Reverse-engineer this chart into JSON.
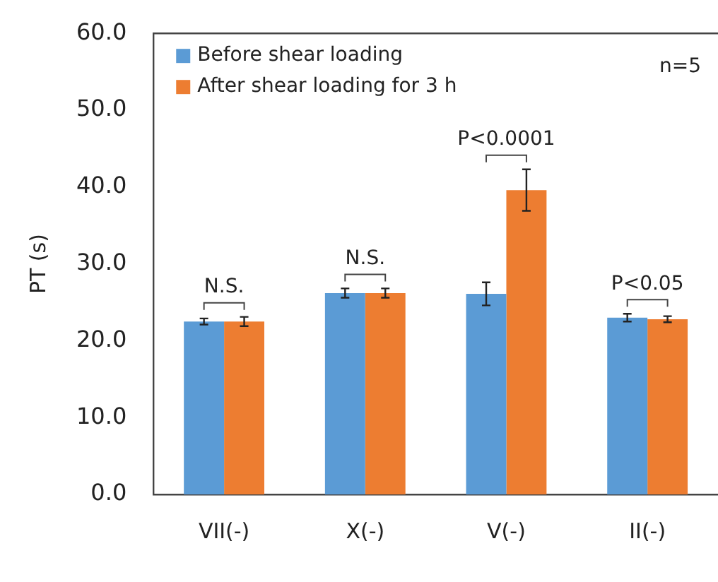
{
  "chart_data": {
    "type": "bar",
    "ylabel": "PT (s)",
    "categories": [
      "VII(-)",
      "X(-)",
      "V(-)",
      "II(-)"
    ],
    "series": [
      {
        "name": "Before shear loading",
        "color": "#5b9bd5",
        "values": [
          22.5,
          26.2,
          26.1,
          23.0
        ],
        "errors": [
          0.4,
          0.6,
          1.5,
          0.5
        ]
      },
      {
        "name": "After shear loading for 3 h",
        "color": "#ed7d31",
        "values": [
          22.5,
          26.2,
          39.6,
          22.8
        ],
        "errors": [
          0.6,
          0.6,
          2.7,
          0.4
        ]
      }
    ],
    "ylim": [
      0,
      60
    ],
    "yticks": [
      {
        "value": 0,
        "label": "0.0"
      },
      {
        "value": 10,
        "label": "10.0"
      },
      {
        "value": 20,
        "label": "20.0"
      },
      {
        "value": 30,
        "label": "30.0"
      },
      {
        "value": 40,
        "label": "40.0"
      },
      {
        "value": 50,
        "label": "50.0"
      },
      {
        "value": 60,
        "label": "60.0"
      }
    ],
    "grid": false,
    "legend": "top left",
    "annotations": [
      "N.S.",
      "N.S.",
      "P<0.0001",
      "P<0.05",
      "n=5"
    ]
  }
}
